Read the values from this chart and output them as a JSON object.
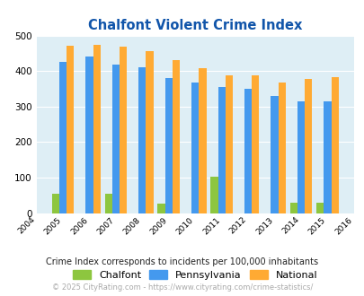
{
  "title": "Chalfont Violent Crime Index",
  "years": [
    2005,
    2006,
    2007,
    2008,
    2009,
    2010,
    2011,
    2012,
    2013,
    2014,
    2015
  ],
  "chalfont": [
    55,
    0,
    55,
    0,
    28,
    0,
    103,
    0,
    0,
    30,
    30
  ],
  "pennsylvania": [
    425,
    440,
    418,
    410,
    381,
    368,
    355,
    350,
    329,
    315,
    315
  ],
  "national": [
    470,
    473,
    468,
    455,
    432,
    407,
    388,
    388,
    368,
    377,
    384
  ],
  "color_chalfont": "#8dc63f",
  "color_pennsylvania": "#4499ee",
  "color_national": "#ffaa33",
  "background_color": "#deeef5",
  "xlim": [
    2004,
    2016
  ],
  "ylim": [
    0,
    500
  ],
  "yticks": [
    0,
    100,
    200,
    300,
    400,
    500
  ],
  "subtitle": "Crime Index corresponds to incidents per 100,000 inhabitants",
  "footer": "© 2025 CityRating.com - https://www.cityrating.com/crime-statistics/",
  "title_color": "#1155aa",
  "subtitle_color": "#222222",
  "footer_color": "#aaaaaa",
  "bar_width": 0.28
}
